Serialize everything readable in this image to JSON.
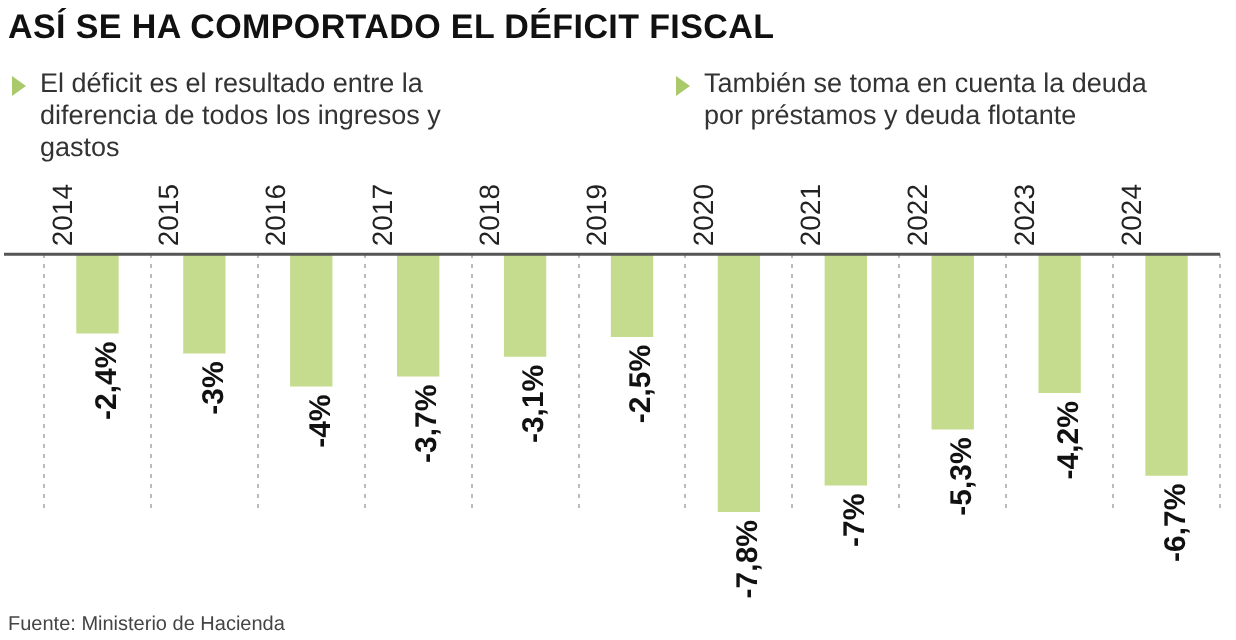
{
  "chart_data": {
    "type": "bar",
    "title": "ASÍ SE HA COMPORTADO EL DÉFICIT FISCAL",
    "annotations": [
      "El déficit es el resultado entre la diferencia de todos los ingresos y gastos",
      "También se toma en cuenta la deuda por préstamos y deuda flotante",
      "Fuente: Ministerio de Hacienda"
    ],
    "categories": [
      "2014",
      "2015",
      "2016",
      "2017",
      "2018",
      "2019",
      "2020",
      "2021",
      "2022",
      "2023",
      "2024"
    ],
    "values": [
      -2.4,
      -3,
      -4,
      -3.7,
      -3.1,
      -2.5,
      -7.8,
      -7,
      -5.3,
      -4.2,
      -6.7
    ],
    "value_labels": [
      "-2,4%",
      "-3%",
      "-4%",
      "-3,7%",
      "-3,1%",
      "-2,5%",
      "-7,8%",
      "-7%",
      "-5,3%",
      "-4,2%",
      "-6,7%"
    ],
    "color": "#c5dc8e",
    "grid": "x",
    "legend": false
  }
}
